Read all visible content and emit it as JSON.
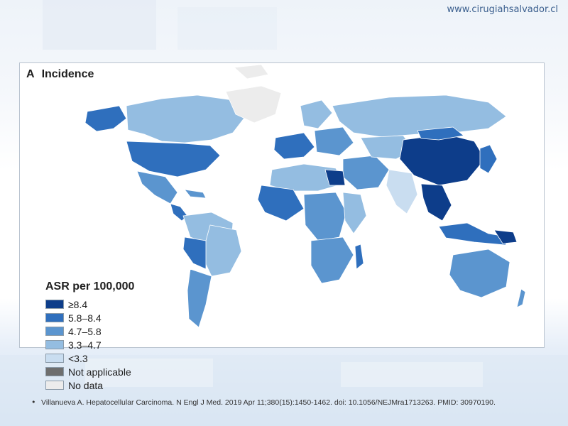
{
  "header": {
    "website": "www.cirugiahsalvador.cl"
  },
  "figure": {
    "panel_letter": "A",
    "panel_title": "Incidence",
    "legend": {
      "title": "ASR per 100,000",
      "items": [
        {
          "label": "≥8.4",
          "color": "#0d3d8a"
        },
        {
          "label": "5.8–8.4",
          "color": "#2f6fbd"
        },
        {
          "label": "4.7–5.8",
          "color": "#5b95cf"
        },
        {
          "label": "3.3–4.7",
          "color": "#94bde1"
        },
        {
          "label": "<3.3",
          "color": "#c9ddf0"
        },
        {
          "label": "Not applicable",
          "color": "#6e6e6e"
        },
        {
          "label": "No data",
          "color": "#ececec"
        }
      ]
    }
  },
  "footer": {
    "bullet": "•",
    "citation": "Villanueva A. Hepatocellular Carcinoma. N Engl J Med. 2019 Apr 11;380(15):1450-1462.   doi: 10.1056/NEJMra1713263.   PMID: 30970190."
  }
}
